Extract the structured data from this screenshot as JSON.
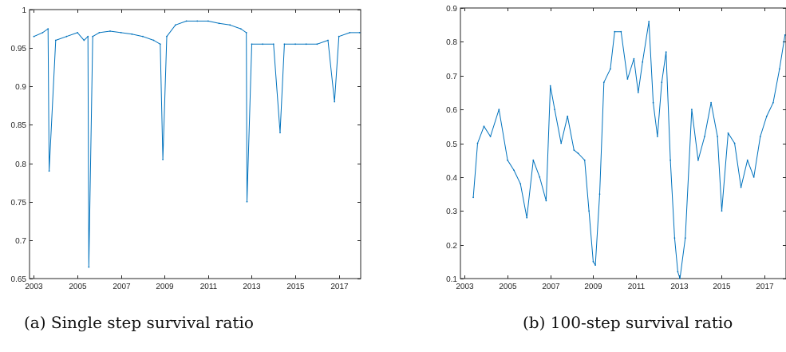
{
  "captions": {
    "a": "(a)  Single step survival ratio",
    "b": "(b)  100-step survival ratio"
  },
  "colors": {
    "series": "#0072BD",
    "axis": "#262626"
  },
  "chart_data": [
    {
      "type": "line",
      "title": "",
      "xlabel": "",
      "ylabel": "",
      "xlim": [
        2002.8,
        2018.0
      ],
      "ylim": [
        0.65,
        1.0
      ],
      "xticks": [
        2003,
        2005,
        2007,
        2009,
        2011,
        2013,
        2015,
        2017
      ],
      "xtick_labels": [
        "2003",
        "2005",
        "2007",
        "2009",
        "2011",
        "2013",
        "2015",
        "2017"
      ],
      "yticks": [
        0.65,
        0.7,
        0.75,
        0.8,
        0.85,
        0.9,
        0.95,
        1
      ],
      "ytick_labels": [
        "0.65",
        "0.7",
        "0.75",
        "0.8",
        "0.85",
        "0.9",
        "0.95",
        "1"
      ],
      "grid": false,
      "legend": "none",
      "series": [
        {
          "x": [
            2003.0,
            2003.4,
            2003.65,
            2003.7,
            2004.0,
            2004.5,
            2005.0,
            2005.3,
            2005.48,
            2005.52,
            2005.7,
            2006.0,
            2006.5,
            2007.0,
            2007.5,
            2008.0,
            2008.5,
            2008.8,
            2008.92,
            2009.1,
            2009.5,
            2010.0,
            2010.5,
            2011.0,
            2011.5,
            2012.0,
            2012.5,
            2012.75,
            2012.78,
            2013.0,
            2013.5,
            2014.0,
            2014.3,
            2014.5,
            2015.0,
            2015.5,
            2016.0,
            2016.5,
            2016.8,
            2017.0,
            2017.5,
            2017.95
          ],
          "y": [
            0.965,
            0.97,
            0.975,
            0.79,
            0.96,
            0.965,
            0.97,
            0.96,
            0.965,
            0.665,
            0.965,
            0.97,
            0.972,
            0.97,
            0.968,
            0.965,
            0.96,
            0.955,
            0.805,
            0.965,
            0.98,
            0.985,
            0.985,
            0.985,
            0.982,
            0.98,
            0.975,
            0.97,
            0.75,
            0.955,
            0.955,
            0.955,
            0.84,
            0.955,
            0.955,
            0.955,
            0.955,
            0.96,
            0.88,
            0.965,
            0.97,
            0.97
          ]
        }
      ]
    },
    {
      "type": "line",
      "title": "",
      "xlabel": "",
      "ylabel": "",
      "xlim": [
        2002.8,
        2018.0
      ],
      "ylim": [
        0.1,
        0.9
      ],
      "xticks": [
        2003,
        2005,
        2007,
        2009,
        2011,
        2013,
        2015,
        2017
      ],
      "xtick_labels": [
        "2003",
        "2005",
        "2007",
        "2009",
        "2011",
        "2013",
        "2015",
        "2017"
      ],
      "yticks": [
        0.1,
        0.2,
        0.3,
        0.4,
        0.5,
        0.6,
        0.7,
        0.8,
        0.9
      ],
      "ytick_labels": [
        "0.1",
        "0.2",
        "0.3",
        "0.4",
        "0.5",
        "0.6",
        "0.7",
        "0.8",
        "0.9"
      ],
      "grid": false,
      "legend": "none",
      "series": [
        {
          "x": [
            2003.4,
            2003.6,
            2003.9,
            2004.2,
            2004.6,
            2005.0,
            2005.3,
            2005.6,
            2005.9,
            2006.2,
            2006.5,
            2006.8,
            2007.0,
            2007.2,
            2007.5,
            2007.8,
            2008.1,
            2008.3,
            2008.6,
            2008.8,
            2009.0,
            2009.1,
            2009.3,
            2009.5,
            2009.8,
            2010.0,
            2010.3,
            2010.6,
            2010.9,
            2011.1,
            2011.3,
            2011.6,
            2011.8,
            2012.0,
            2012.2,
            2012.4,
            2012.6,
            2012.8,
            2012.95,
            2013.05,
            2013.3,
            2013.6,
            2013.9,
            2014.2,
            2014.5,
            2014.8,
            2015.0,
            2015.3,
            2015.6,
            2015.9,
            2016.2,
            2016.5,
            2016.8,
            2017.1,
            2017.4,
            2017.7,
            2017.95
          ],
          "y": [
            0.34,
            0.5,
            0.55,
            0.52,
            0.6,
            0.45,
            0.42,
            0.38,
            0.28,
            0.45,
            0.4,
            0.33,
            0.67,
            0.6,
            0.5,
            0.58,
            0.48,
            0.47,
            0.45,
            0.3,
            0.15,
            0.14,
            0.35,
            0.68,
            0.72,
            0.83,
            0.83,
            0.69,
            0.75,
            0.65,
            0.74,
            0.86,
            0.62,
            0.52,
            0.68,
            0.77,
            0.45,
            0.22,
            0.12,
            0.1,
            0.22,
            0.6,
            0.45,
            0.52,
            0.62,
            0.52,
            0.3,
            0.53,
            0.5,
            0.37,
            0.45,
            0.4,
            0.52,
            0.58,
            0.62,
            0.72,
            0.82
          ]
        }
      ]
    }
  ]
}
